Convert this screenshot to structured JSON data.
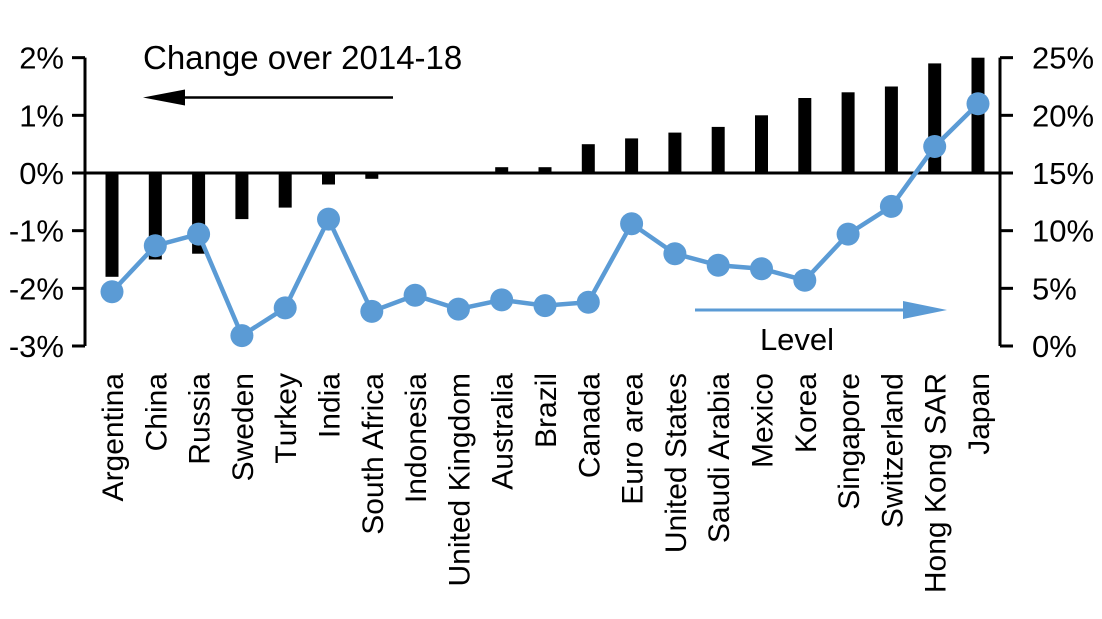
{
  "chart_data": {
    "type": "bar+line",
    "title": "Change over 2014-18",
    "categories": [
      "Argentina",
      "China",
      "Russia",
      "Sweden",
      "Turkey",
      "India",
      "South Africa",
      "Indonesia",
      "United Kingdom",
      "Australia",
      "Brazil",
      "Canada",
      "Euro area",
      "United States",
      "Saudi Arabia",
      "Mexico",
      "Korea",
      "Singapore",
      "Switzerland",
      "Hong Kong SAR",
      "Japan"
    ],
    "series": [
      {
        "name": "Change over 2014-18",
        "type": "bar",
        "axis": "left",
        "color": "#000000",
        "values": [
          -1.8,
          -1.5,
          -1.4,
          -0.8,
          -0.6,
          -0.2,
          -0.1,
          0,
          0,
          0.1,
          0.1,
          0.5,
          0.6,
          0.7,
          0.8,
          1.0,
          1.3,
          1.4,
          1.5,
          1.9,
          2.0
        ]
      },
      {
        "name": "Level",
        "type": "line",
        "axis": "right",
        "color": "#5B9BD5",
        "values": [
          4.7,
          8.7,
          9.7,
          0.9,
          3.3,
          11.0,
          3.0,
          4.4,
          3.2,
          4.0,
          3.5,
          3.8,
          10.6,
          8.0,
          7.0,
          6.7,
          5.7,
          9.7,
          12.1,
          17.3,
          21.0
        ]
      }
    ],
    "left_axis": {
      "min": -3,
      "max": 2,
      "step": 1,
      "unit": "%",
      "tick_labels": [
        "2%",
        "1%",
        "0%",
        "-1%",
        "-2%",
        "-3%"
      ]
    },
    "right_axis": {
      "min": 0,
      "max": 25,
      "step": 5,
      "unit": "%",
      "tick_labels": [
        "25%",
        "20%",
        "15%",
        "10%",
        "5%",
        "0%"
      ]
    },
    "annotations": {
      "bar_series_label": "Change over 2014-18",
      "bar_series_arrow_direction": "left",
      "line_series_label": "Level",
      "line_series_arrow_direction": "right"
    },
    "legend_position": "none",
    "grid": false,
    "colors": {
      "bar": "#000000",
      "line": "#5B9BD5",
      "axis": "#000000",
      "background": "#ffffff"
    }
  }
}
